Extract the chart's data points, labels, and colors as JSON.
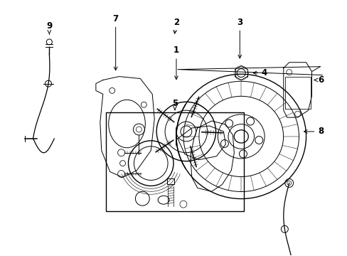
{
  "background_color": "#ffffff",
  "line_color": "#000000",
  "text_color": "#000000",
  "fig_width": 4.89,
  "fig_height": 3.6,
  "dpi": 100,
  "lw": 0.7,
  "label_fontsize": 8.5
}
